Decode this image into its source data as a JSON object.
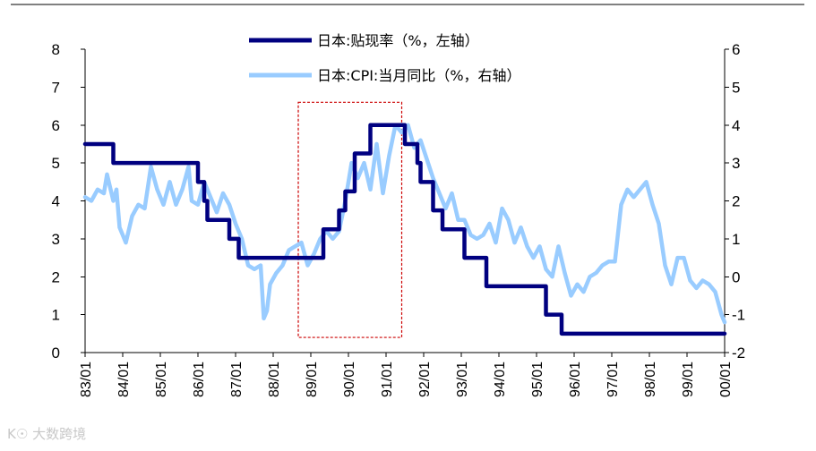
{
  "chart_data": {
    "type": "line",
    "title": "",
    "xlabel": "",
    "ylabel": "",
    "x_ticks": [
      "83/01",
      "84/01",
      "85/01",
      "86/01",
      "87/01",
      "88/01",
      "89/01",
      "90/01",
      "91/01",
      "92/01",
      "93/01",
      "94/01",
      "95/01",
      "96/01",
      "97/01",
      "98/01",
      "99/01",
      "00/01"
    ],
    "y_left_ticks": [
      "0",
      "1",
      "2",
      "3",
      "4",
      "5",
      "6",
      "7",
      "8"
    ],
    "y_right_ticks": [
      "-2",
      "-1",
      "0",
      "1",
      "2",
      "3",
      "4",
      "5",
      "6"
    ],
    "y_left_range": [
      0,
      8
    ],
    "y_right_range": [
      -2,
      6
    ],
    "legend_placement": "top",
    "series": [
      {
        "name": "日本:贴现率（%，左轴）",
        "axis": "left",
        "color": "#000080",
        "style": "step",
        "points": [
          [
            "1983-01",
            5.5
          ],
          [
            "1983-10",
            5.0
          ],
          [
            "1986-01",
            4.5
          ],
          [
            "1986-03",
            4.0
          ],
          [
            "1986-04",
            3.5
          ],
          [
            "1986-11",
            3.0
          ],
          [
            "1987-02",
            2.5
          ],
          [
            "1989-05",
            3.25
          ],
          [
            "1989-10",
            3.75
          ],
          [
            "1989-12",
            4.25
          ],
          [
            "1990-03",
            5.25
          ],
          [
            "1990-08",
            6.0
          ],
          [
            "1991-07",
            5.5
          ],
          [
            "1991-11",
            5.0
          ],
          [
            "1991-12",
            4.5
          ],
          [
            "1992-04",
            3.75
          ],
          [
            "1992-07",
            3.25
          ],
          [
            "1993-02",
            2.5
          ],
          [
            "1993-09",
            1.75
          ],
          [
            "1995-04",
            1.0
          ],
          [
            "1995-09",
            0.5
          ],
          [
            "2000-01",
            0.5
          ]
        ]
      },
      {
        "name": "日本:CPI:当月同比（%，右轴）",
        "axis": "right",
        "color": "#99ccff",
        "style": "line",
        "points": [
          [
            "1983-01",
            2.1
          ],
          [
            "1983-03",
            2.0
          ],
          [
            "1983-05",
            2.3
          ],
          [
            "1983-07",
            2.2
          ],
          [
            "1983-08",
            2.7
          ],
          [
            "1983-10",
            2.0
          ],
          [
            "1983-11",
            2.3
          ],
          [
            "1983-12",
            1.3
          ],
          [
            "1984-02",
            0.9
          ],
          [
            "1984-04",
            1.6
          ],
          [
            "1984-06",
            1.9
          ],
          [
            "1984-08",
            1.8
          ],
          [
            "1984-10",
            2.9
          ],
          [
            "1984-12",
            2.3
          ],
          [
            "1985-02",
            1.9
          ],
          [
            "1985-04",
            2.5
          ],
          [
            "1985-06",
            1.9
          ],
          [
            "1985-08",
            2.3
          ],
          [
            "1985-10",
            2.9
          ],
          [
            "1985-11",
            2.0
          ],
          [
            "1986-01",
            1.9
          ],
          [
            "1986-03",
            2.5
          ],
          [
            "1986-05",
            2.1
          ],
          [
            "1986-07",
            1.7
          ],
          [
            "1986-09",
            2.2
          ],
          [
            "1986-11",
            1.9
          ],
          [
            "1987-01",
            1.4
          ],
          [
            "1987-03",
            1.0
          ],
          [
            "1987-05",
            0.3
          ],
          [
            "1987-07",
            0.2
          ],
          [
            "1987-09",
            0.3
          ],
          [
            "1987-10",
            -1.1
          ],
          [
            "1987-11",
            -0.9
          ],
          [
            "1987-12",
            -0.2
          ],
          [
            "1988-02",
            0.1
          ],
          [
            "1988-04",
            0.3
          ],
          [
            "1988-06",
            0.7
          ],
          [
            "1988-08",
            0.8
          ],
          [
            "1988-10",
            0.9
          ],
          [
            "1988-12",
            0.3
          ],
          [
            "1989-02",
            0.6
          ],
          [
            "1989-04",
            1.0
          ],
          [
            "1989-06",
            1.2
          ],
          [
            "1989-08",
            1.0
          ],
          [
            "1989-10",
            1.2
          ],
          [
            "1989-12",
            2.0
          ],
          [
            "1990-02",
            3.0
          ],
          [
            "1990-04",
            2.6
          ],
          [
            "1990-06",
            3.0
          ],
          [
            "1990-08",
            2.3
          ],
          [
            "1990-10",
            3.5
          ],
          [
            "1990-12",
            2.2
          ],
          [
            "1991-02",
            3.2
          ],
          [
            "1991-04",
            4.0
          ],
          [
            "1991-06",
            3.8
          ],
          [
            "1991-08",
            4.0
          ],
          [
            "1991-10",
            3.4
          ],
          [
            "1991-12",
            3.6
          ],
          [
            "1992-02",
            3.1
          ],
          [
            "1992-04",
            2.6
          ],
          [
            "1992-06",
            2.2
          ],
          [
            "1992-08",
            1.8
          ],
          [
            "1992-10",
            2.2
          ],
          [
            "1992-12",
            1.5
          ],
          [
            "1993-02",
            1.5
          ],
          [
            "1993-04",
            1.1
          ],
          [
            "1993-06",
            1.0
          ],
          [
            "1993-08",
            1.1
          ],
          [
            "1993-10",
            1.4
          ],
          [
            "1993-12",
            0.9
          ],
          [
            "1994-02",
            1.8
          ],
          [
            "1994-04",
            1.5
          ],
          [
            "1994-06",
            0.9
          ],
          [
            "1994-08",
            1.3
          ],
          [
            "1994-10",
            0.8
          ],
          [
            "1994-12",
            0.5
          ],
          [
            "1995-02",
            0.8
          ],
          [
            "1995-04",
            0.2
          ],
          [
            "1995-06",
            0.0
          ],
          [
            "1995-08",
            0.8
          ],
          [
            "1995-10",
            0.1
          ],
          [
            "1995-12",
            -0.5
          ],
          [
            "1996-02",
            -0.2
          ],
          [
            "1996-04",
            -0.4
          ],
          [
            "1996-06",
            0.0
          ],
          [
            "1996-08",
            0.1
          ],
          [
            "1996-10",
            0.3
          ],
          [
            "1996-12",
            0.4
          ],
          [
            "1997-02",
            0.4
          ],
          [
            "1997-04",
            1.9
          ],
          [
            "1997-06",
            2.3
          ],
          [
            "1997-08",
            2.1
          ],
          [
            "1997-10",
            2.3
          ],
          [
            "1997-12",
            2.5
          ],
          [
            "1998-02",
            1.9
          ],
          [
            "1998-04",
            1.4
          ],
          [
            "1998-06",
            0.3
          ],
          [
            "1998-08",
            -0.2
          ],
          [
            "1998-10",
            0.5
          ],
          [
            "1998-12",
            0.5
          ],
          [
            "1999-02",
            -0.1
          ],
          [
            "1999-04",
            -0.3
          ],
          [
            "1999-06",
            -0.1
          ],
          [
            "1999-08",
            -0.2
          ],
          [
            "1999-10",
            -0.4
          ],
          [
            "1999-12",
            -1.0
          ],
          [
            "2000-01",
            -1.2
          ]
        ]
      }
    ],
    "annotations": [
      {
        "type": "dashed-box",
        "color": "#cc0000",
        "x_range": [
          "1988-09",
          "1991-06"
        ],
        "y_left_range": [
          0.4,
          6.6
        ]
      }
    ]
  },
  "watermark": {
    "text": "大数跨境"
  }
}
